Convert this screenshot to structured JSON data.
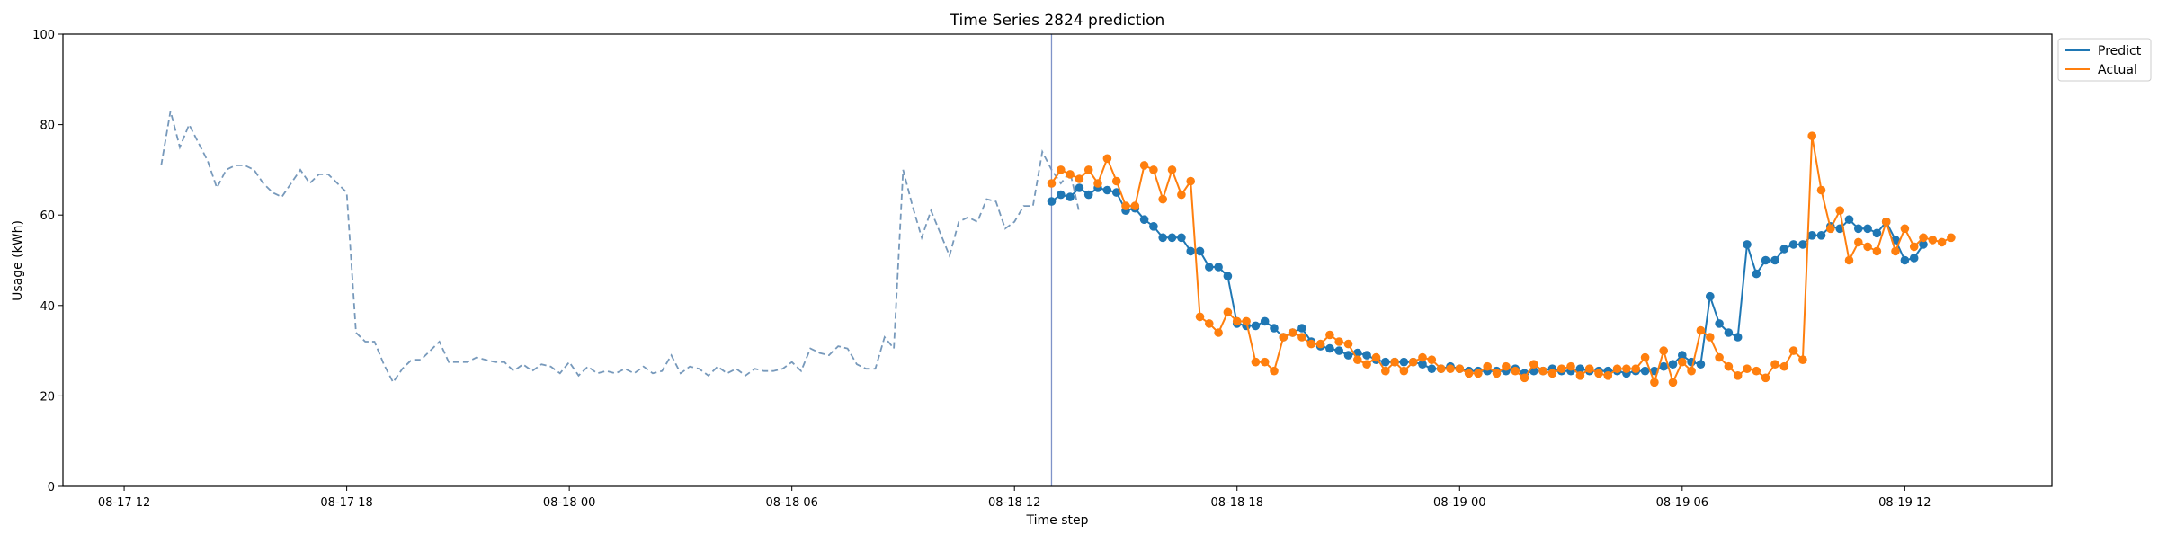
{
  "chart_data": {
    "type": "line",
    "title": "Time Series 2824 prediction",
    "xlabel": "Time step",
    "ylabel": "Usage (kWh)",
    "ylim": [
      0,
      100
    ],
    "yticks": [
      0,
      20,
      40,
      60,
      80,
      100
    ],
    "xlim": [
      "2024-08-17 10:21",
      "2024-08-19 15:58"
    ],
    "xticks": [
      {
        "t": "2024-08-17 12:00",
        "label": "08-17 12"
      },
      {
        "t": "2024-08-17 18:00",
        "label": "08-17 18"
      },
      {
        "t": "2024-08-18 00:00",
        "label": "08-18 00"
      },
      {
        "t": "2024-08-18 06:00",
        "label": "08-18 06"
      },
      {
        "t": "2024-08-18 12:00",
        "label": "08-18 12"
      },
      {
        "t": "2024-08-18 18:00",
        "label": "08-18 18"
      },
      {
        "t": "2024-08-19 00:00",
        "label": "08-19 00"
      },
      {
        "t": "2024-08-19 06:00",
        "label": "08-19 06"
      },
      {
        "t": "2024-08-19 12:00",
        "label": "08-19 12"
      }
    ],
    "interval_minutes": 15,
    "history_start": "2024-08-17 13:00",
    "forecast_start": "2024-08-18 13:00",
    "cutoff": "2024-08-18 13:00",
    "legend_position": "outside-top-right",
    "grid": false,
    "history": {
      "color": "#7799bb",
      "style": "dashed",
      "values": [
        71,
        83,
        75,
        80,
        76,
        72,
        66,
        70,
        71,
        71,
        70,
        67,
        65,
        64,
        67,
        70,
        67,
        69,
        69,
        67,
        65,
        34,
        32,
        32,
        27,
        23,
        26,
        28,
        28,
        30,
        32,
        27.5,
        27.5,
        27.5,
        28.5,
        28,
        27.5,
        27.5,
        25.5,
        27,
        25.5,
        27,
        26.5,
        25,
        27.5,
        24.5,
        26.5,
        25,
        25.5,
        25,
        26,
        25,
        26.5,
        25,
        25.5,
        29,
        25,
        26.5,
        26,
        24.5,
        26.5,
        25,
        26,
        24.5,
        26,
        25.5,
        25.5,
        26,
        27.5,
        25.5,
        30.5,
        29.5,
        29,
        31,
        30.5,
        27,
        26,
        26,
        33,
        30.5,
        70,
        62,
        55,
        61,
        56,
        51,
        58.5,
        59.5,
        58.5,
        63.5,
        63,
        57,
        58.5,
        62,
        62,
        74,
        70,
        67,
        69.5,
        60.5
      ]
    },
    "series": [
      {
        "name": "Predict",
        "color": "#1f77b4",
        "values": [
          63,
          64.5,
          64,
          66,
          64.5,
          66,
          65.5,
          65,
          61,
          61.5,
          59,
          57.5,
          55,
          55,
          55,
          52,
          52,
          48.5,
          48.5,
          46.5,
          36,
          35.5,
          35.5,
          36.5,
          35,
          33,
          34,
          35,
          32,
          31,
          30.5,
          30,
          29,
          29.5,
          29,
          28,
          27.5,
          27.5,
          27.5,
          27.5,
          27,
          26,
          26,
          26.5,
          26,
          25.5,
          25.5,
          25.5,
          25.5,
          25.5,
          26,
          25,
          25.5,
          25.5,
          26,
          25.5,
          25.5,
          26,
          25.5,
          25.5,
          25.5,
          25.5,
          25,
          25.5,
          25.5,
          25.5,
          26.5,
          27,
          29,
          27.5,
          27,
          42,
          36,
          34,
          33,
          53.5,
          47,
          50,
          50,
          52.5,
          53.5,
          53.5,
          55.5,
          55.5,
          57.5,
          57,
          59,
          57,
          57,
          56,
          58.5,
          54.5,
          50,
          50.5,
          53.5
        ]
      },
      {
        "name": "Actual",
        "color": "#ff7f0e",
        "values": [
          67,
          70,
          69,
          68,
          70,
          67,
          72.5,
          67.5,
          62,
          62,
          71,
          70,
          63.5,
          70,
          64.5,
          67.5,
          37.5,
          36,
          34,
          38.5,
          36.5,
          36.5,
          27.5,
          27.5,
          25.5,
          33,
          34,
          33,
          31.5,
          31.5,
          33.5,
          32,
          31.5,
          28,
          27,
          28.5,
          25.5,
          27.5,
          25.5,
          27.5,
          28.5,
          28,
          26,
          26,
          26,
          25,
          25,
          26.5,
          25,
          26.5,
          25.5,
          24,
          27,
          25.5,
          25,
          26,
          26.5,
          24.5,
          26,
          25,
          24.5,
          26,
          26,
          26,
          28.5,
          23,
          30,
          23,
          27.5,
          25.5,
          34.5,
          33,
          28.5,
          26.5,
          24.5,
          26,
          25.5,
          24,
          27,
          26.5,
          30,
          28,
          77.5,
          65.5,
          57,
          61,
          50,
          54,
          53,
          52,
          58.5,
          52,
          57,
          53,
          55,
          54.5,
          54,
          55
        ]
      }
    ]
  }
}
